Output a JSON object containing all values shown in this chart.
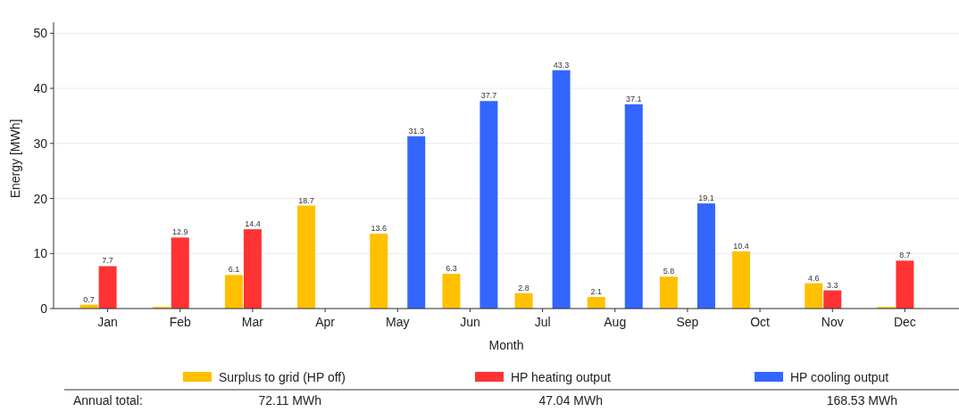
{
  "chart_data": {
    "type": "bar",
    "xlabel": "Month",
    "ylabel": "Energy [MWh]",
    "categories": [
      "Jan",
      "Feb",
      "Mar",
      "Apr",
      "May",
      "Jun",
      "Jul",
      "Aug",
      "Sep",
      "Oct",
      "Nov",
      "Dec"
    ],
    "series": [
      {
        "name": "Surplus to grid (HP off)",
        "color": "#ffc000",
        "values": [
          0.7,
          0.3,
          6.1,
          18.7,
          13.6,
          6.3,
          2.8,
          2.1,
          5.8,
          10.4,
          4.6,
          0.3
        ],
        "value_labels": [
          "0.7",
          null,
          "6.1",
          "18.7",
          "13.6",
          "6.3",
          "2.8",
          "2.1",
          "5.8",
          "10.4",
          "4.6",
          null
        ]
      },
      {
        "name": "HP heating output",
        "color": "#ff3333",
        "values": [
          7.7,
          12.9,
          14.4,
          null,
          null,
          null,
          null,
          null,
          null,
          null,
          3.3,
          8.7
        ],
        "value_labels": [
          "7.7",
          "12.9",
          "14.4",
          null,
          null,
          null,
          null,
          null,
          null,
          null,
          "3.3",
          "8.7"
        ]
      },
      {
        "name": "HP cooling output",
        "color": "#3366ff",
        "values": [
          null,
          null,
          null,
          null,
          31.3,
          37.7,
          43.3,
          37.1,
          19.1,
          null,
          null,
          null
        ],
        "value_labels": [
          null,
          null,
          null,
          null,
          "31.3",
          "37.7",
          "43.3",
          "37.1",
          "19.1",
          null,
          null,
          null
        ]
      }
    ],
    "ylim": [
      0,
      52
    ],
    "yticks": [
      0,
      10,
      20,
      30,
      40,
      50
    ],
    "grid": "y",
    "legend": "bottom",
    "annotations": [
      "Annual total:",
      "72.11 MWh",
      "47.04 MWh",
      "168.53 MWh"
    ]
  }
}
